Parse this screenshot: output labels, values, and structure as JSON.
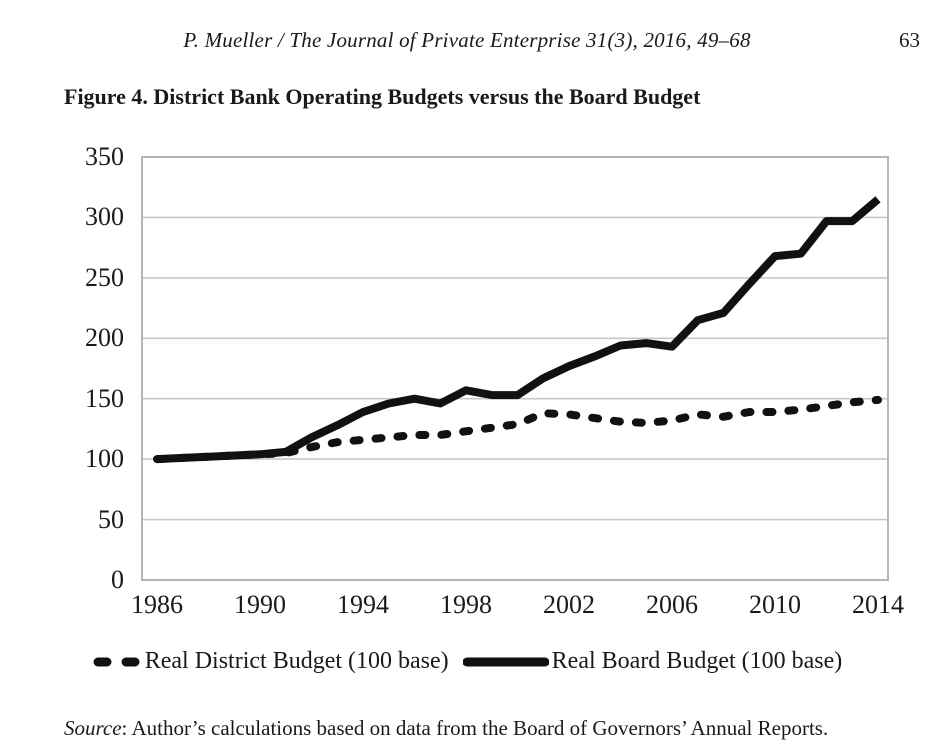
{
  "page": {
    "running_head": "P. Mueller /  The Journal of Private Enterprise 31(3), 2016, 49–68",
    "page_number": "63",
    "figure_title": "Figure 4. District Bank Operating Budgets versus the Board Budget",
    "source_label": "Source",
    "source_text": ": Author’s calculations based on data from the Board of Governors’ Annual Reports."
  },
  "chart_data": {
    "type": "line",
    "title": "Figure 4. District Bank Operating Budgets versus the Board Budget",
    "xlabel": "",
    "ylabel": "",
    "x": [
      1986,
      1987,
      1988,
      1989,
      1990,
      1991,
      1992,
      1993,
      1994,
      1995,
      1996,
      1997,
      1998,
      1999,
      2000,
      2001,
      2002,
      2003,
      2004,
      2005,
      2006,
      2007,
      2008,
      2009,
      2010,
      2011,
      2012,
      2013,
      2014
    ],
    "series": [
      {
        "name": "Real District Budget (100 base)",
        "style": "dashed",
        "color": "#111111",
        "values": [
          100,
          101,
          102,
          103,
          104,
          105,
          110,
          114,
          116,
          118,
          120,
          120,
          123,
          126,
          129,
          138,
          137,
          134,
          131,
          130,
          132,
          137,
          135,
          139,
          139,
          141,
          144,
          147,
          149
        ]
      },
      {
        "name": "Real Board Budget (100 base)",
        "style": "solid",
        "color": "#111111",
        "values": [
          100,
          101,
          102,
          103,
          104,
          106,
          118,
          128,
          139,
          146,
          150,
          146,
          157,
          153,
          153,
          167,
          177,
          185,
          194,
          196,
          193,
          215,
          221,
          245,
          268,
          270,
          297,
          297,
          315
        ]
      }
    ],
    "ylim": [
      0,
      350
    ],
    "yticks": [
      0,
      50,
      100,
      150,
      200,
      250,
      300,
      350
    ],
    "xticks": [
      1986,
      1990,
      1994,
      1998,
      2002,
      2006,
      2010,
      2014
    ],
    "grid": "horizontal",
    "gridline_color": "#c7c7c7",
    "border_color": "#b5b5b5",
    "legend_position": "bottom"
  }
}
